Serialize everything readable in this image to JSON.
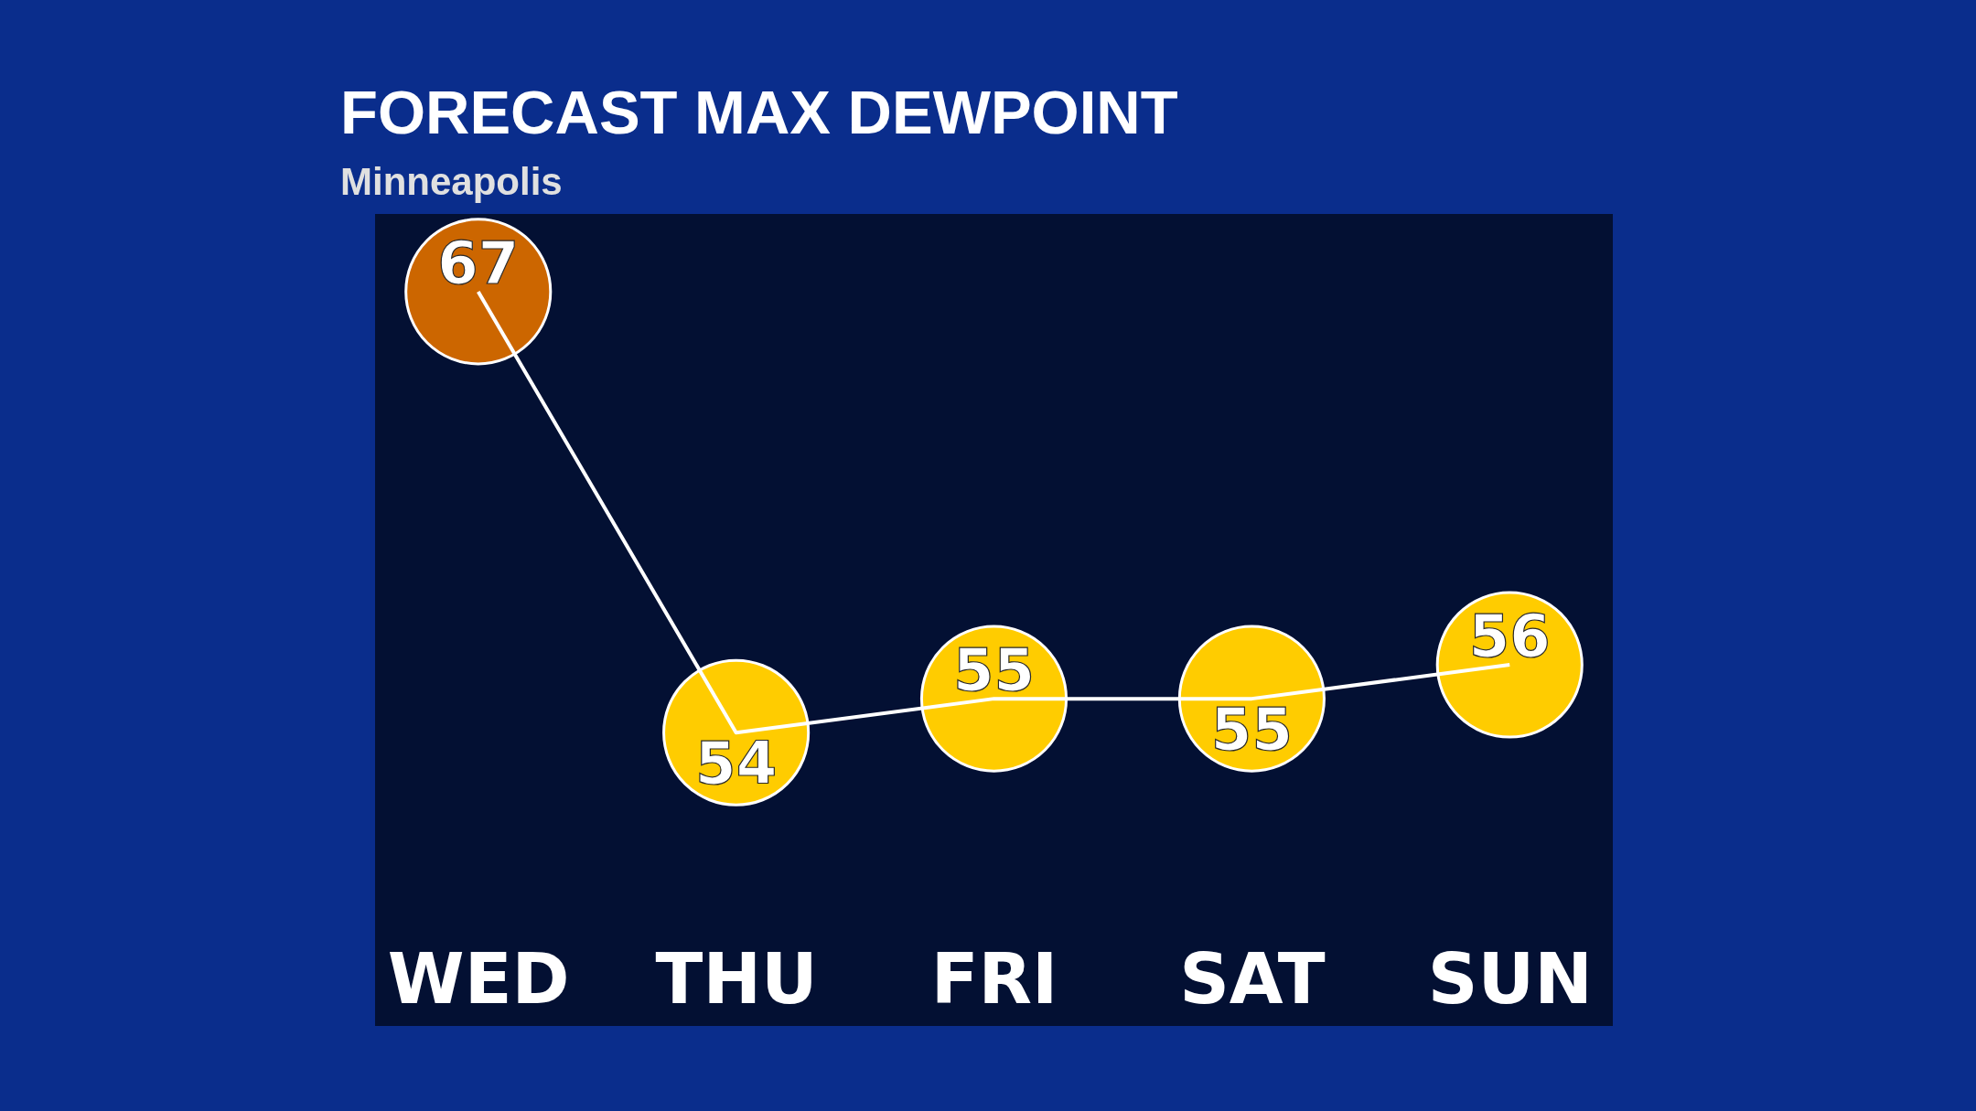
{
  "chart_data": {
    "type": "line",
    "title": "FORECAST MAX DEWPOINT",
    "subtitle": "Minneapolis",
    "categories": [
      "WED",
      "THU",
      "FRI",
      "SAT",
      "SUN"
    ],
    "values": [
      67,
      54,
      55,
      55,
      56
    ],
    "color": "#ffffff",
    "colors": [
      "#cc6600",
      "#ffcc00",
      "#ffcc00",
      "#ffcc00",
      "#ffcc00"
    ],
    "line_style": "solid",
    "data_labels": true,
    "grid": false,
    "tick_labels": "x"
  }
}
